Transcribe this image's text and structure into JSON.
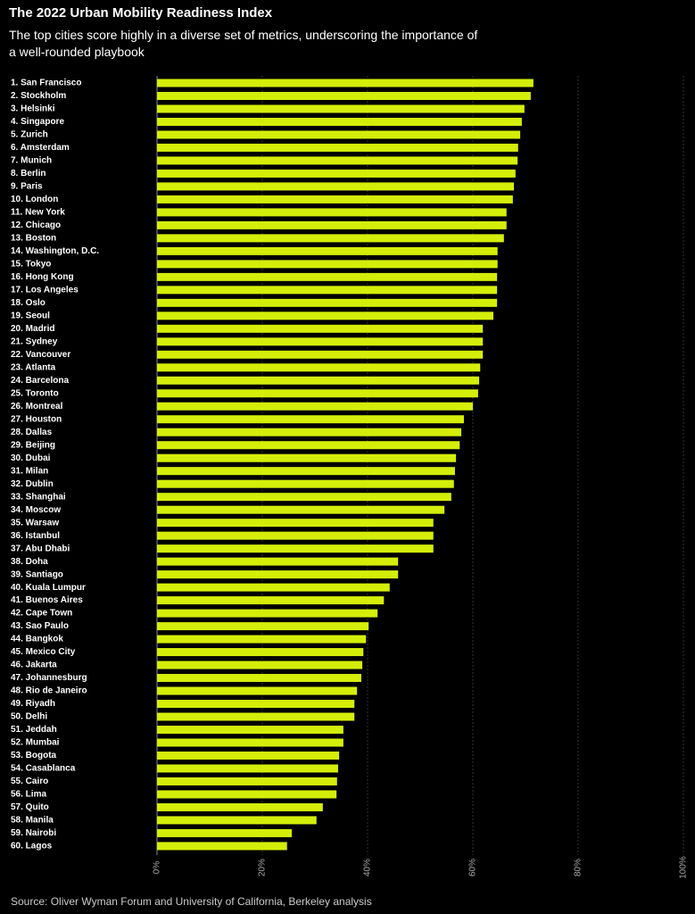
{
  "chart_data": {
    "type": "bar",
    "orientation": "horizontal",
    "title": "The 2022 Urban Mobility Readiness Index",
    "subtitle": "The top cities score highly in a diverse set of metrics, underscoring the importance of a well-rounded playbook",
    "source": "Source: Oliver Wyman Forum and University of California, Berkeley analysis",
    "categories": [
      "1. San Francisco",
      "2. Stockholm",
      "3. Helsinki",
      "4. Singapore",
      "5. Zurich",
      "6. Amsterdam",
      "7. Munich",
      "8. Berlin",
      "9. Paris",
      "10. London",
      "11. New York",
      "12. Chicago",
      "13. Boston",
      "14. Washington, D.C.",
      "15. Tokyo",
      "16. Hong Kong",
      "17. Los Angeles",
      "18. Oslo",
      "19. Seoul",
      "20. Madrid",
      "21. Sydney",
      "22. Vancouver",
      "23. Atlanta",
      "24. Barcelona",
      "25. Toronto",
      "26. Montreal",
      "27. Houston",
      "28. Dallas",
      "29. Beijing",
      "30. Dubai",
      "31. Milan",
      "32. Dublin",
      "33. Shanghai",
      "34. Moscow",
      "35. Warsaw",
      "36. Istanbul",
      "37. Abu Dhabi",
      "38. Doha",
      "39. Santiago",
      "40. Kuala Lumpur",
      "41. Buenos Aires",
      "42. Cape Town",
      "43. Sao Paulo",
      "44. Bangkok",
      "45. Mexico City",
      "46. Jakarta",
      "47. Johannesburg",
      "48. Rio de Janeiro",
      "49. Riyadh",
      "50. Delhi",
      "51. Jeddah",
      "52. Mumbai",
      "53. Bogota",
      "54. Casablanca",
      "55. Cairo",
      "56. Lima",
      "57. Quito",
      "58. Manila",
      "59. Nairobi",
      "60. Lagos"
    ],
    "values": [
      71.5,
      71.0,
      69.8,
      69.3,
      69.0,
      68.6,
      68.5,
      68.1,
      67.8,
      67.6,
      66.4,
      66.4,
      65.9,
      64.7,
      64.7,
      64.6,
      64.6,
      64.6,
      63.9,
      61.9,
      61.9,
      61.9,
      61.4,
      61.2,
      61.0,
      60.0,
      58.3,
      57.8,
      57.5,
      56.8,
      56.6,
      56.4,
      55.9,
      54.6,
      52.5,
      52.5,
      52.5,
      45.8,
      45.8,
      44.2,
      43.1,
      41.9,
      40.2,
      39.7,
      39.2,
      39.0,
      38.8,
      38.0,
      37.5,
      37.5,
      35.4,
      35.4,
      34.6,
      34.4,
      34.2,
      34.1,
      31.5,
      30.3,
      25.6,
      24.7
    ],
    "color": "#d4ee0a",
    "xlim": [
      0,
      100
    ],
    "xticks": [
      {
        "value": 0,
        "label": "0%"
      },
      {
        "value": 20,
        "label": "20%"
      },
      {
        "value": 40,
        "label": "40%"
      },
      {
        "value": 60,
        "label": "60%"
      },
      {
        "value": 80,
        "label": "80%"
      },
      {
        "value": 100,
        "label": "100%"
      }
    ],
    "grid": true
  }
}
